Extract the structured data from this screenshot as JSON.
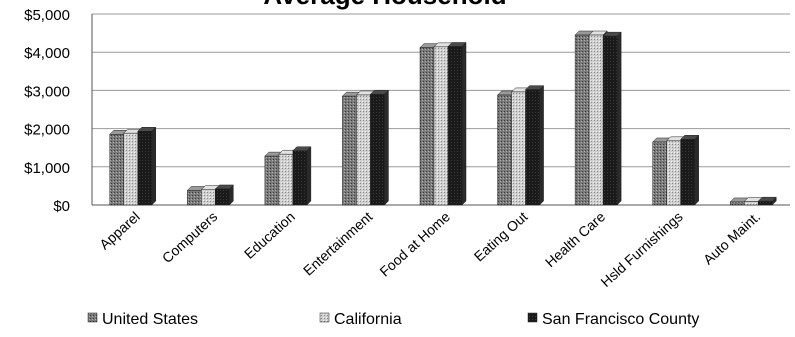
{
  "chart_data": {
    "type": "bar",
    "title": "Average Household",
    "categories": [
      "Apparel",
      "Computers",
      "Education",
      "Entertainment",
      "Food at Home",
      "Eating Out",
      "Health Care",
      "Hsld Furnishings",
      "Auto Maint."
    ],
    "series": [
      {
        "name": "United States",
        "values": [
          1850,
          380,
          1280,
          2850,
          4120,
          2880,
          4450,
          1650,
          80
        ]
      },
      {
        "name": "California",
        "values": [
          1880,
          400,
          1330,
          2880,
          4140,
          2960,
          4450,
          1680,
          90
        ]
      },
      {
        "name": "San Francisco County",
        "values": [
          1930,
          420,
          1420,
          2900,
          4150,
          3020,
          4420,
          1720,
          100
        ]
      }
    ],
    "y_ticks": [
      "$5,000",
      "$4,000",
      "$3,000",
      "$2,000",
      "$1,000",
      "$0"
    ],
    "ylim": [
      0,
      5000
    ],
    "grid": true,
    "legend_position": "bottom",
    "colors": {
      "united_states": "#6e6e6e",
      "california": "#c4c4c4",
      "san_francisco": "#1a1a1a",
      "grid": "#9a9a9a"
    }
  }
}
